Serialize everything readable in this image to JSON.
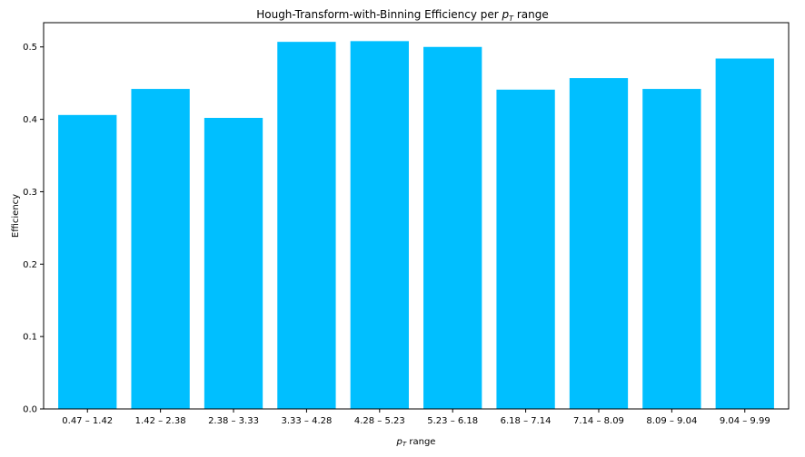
{
  "chart_data": {
    "type": "bar",
    "title": "Hough-Transform-with-Binning Efficiency per p_T range",
    "title_prefix": "Hough-Transform-with-Binning Efficiency per ",
    "title_symbol": "p",
    "title_subscript": "T",
    "title_suffix": " range",
    "xlabel": "p_T range",
    "xlabel_symbol": "p",
    "xlabel_subscript": "T",
    "xlabel_suffix": " range",
    "ylabel": "Efficiency",
    "categories": [
      "0.47 – 1.42",
      "1.42 – 2.38",
      "2.38 – 3.33",
      "3.33 – 4.28",
      "4.28 – 5.23",
      "5.23 – 6.18",
      "6.18 – 7.14",
      "7.14 – 8.09",
      "8.09 – 9.04",
      "9.04 – 9.99"
    ],
    "values": [
      0.406,
      0.442,
      0.402,
      0.507,
      0.508,
      0.5,
      0.441,
      0.457,
      0.442,
      0.484
    ],
    "yticks": [
      "0.0",
      "0.1",
      "0.2",
      "0.3",
      "0.4",
      "0.5"
    ],
    "ylim": [
      0,
      0.5335
    ],
    "grid": false,
    "bar_color": "#00bfff"
  }
}
